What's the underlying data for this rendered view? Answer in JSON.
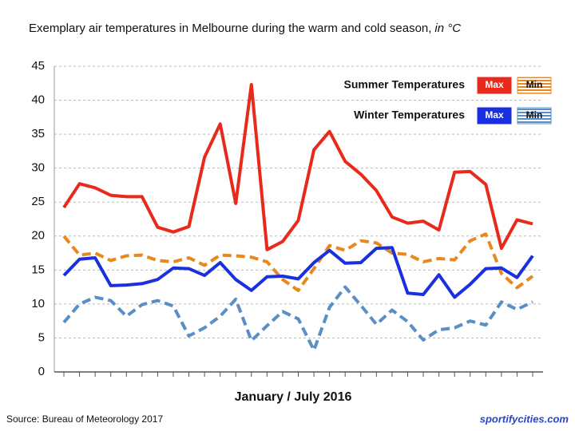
{
  "chart_data": {
    "type": "line",
    "title": "Exemplary air temperatures in Melbourne during the warm and cold season,",
    "title_unit": "in °C",
    "x_label": "January / July 2016",
    "source": "Source:  Bureau of Meteorology 2017",
    "watermark": "sportifycities.com",
    "categories": [
      null,
      null,
      null,
      null,
      null,
      null,
      null,
      null,
      null,
      null,
      null,
      null,
      null,
      null,
      null,
      null,
      null,
      null,
      null,
      null,
      null,
      null,
      null,
      null,
      null,
      null,
      null,
      null,
      null,
      null,
      null
    ],
    "ylim": [
      0,
      45
    ],
    "yticks": [
      0,
      5,
      10,
      15,
      20,
      25,
      30,
      35,
      40,
      45
    ],
    "grid": true,
    "legend": "top-right",
    "series": [
      {
        "group": "Summer Temperatures",
        "name": "Max",
        "color": "#e8291c",
        "dashed": false,
        "values": [
          24.2,
          27.7,
          27.1,
          26.0,
          25.8,
          25.8,
          21.3,
          20.6,
          21.4,
          31.6,
          36.5,
          24.8,
          42.3,
          18.0,
          19.2,
          22.3,
          32.7,
          35.4,
          31.0,
          29.1,
          26.7,
          22.8,
          21.9,
          22.2,
          20.9,
          29.4,
          29.5,
          27.6,
          18.2,
          22.4,
          21.8
        ]
      },
      {
        "group": "Summer Temperatures",
        "name": "Min",
        "color": "#e8891e",
        "dashed": true,
        "values": [
          20.0,
          17.2,
          17.5,
          16.4,
          17.1,
          17.2,
          16.4,
          16.2,
          16.8,
          15.7,
          17.2,
          17.1,
          16.9,
          16.2,
          13.6,
          12.0,
          15.2,
          18.6,
          17.9,
          19.3,
          19.0,
          17.5,
          17.3,
          16.2,
          16.7,
          16.5,
          19.3,
          20.3,
          14.5,
          12.4,
          14.1
        ]
      },
      {
        "group": "Winter Temperatures",
        "name": "Max",
        "color": "#1a2fe0",
        "dashed": false,
        "values": [
          14.2,
          16.6,
          16.8,
          12.7,
          12.8,
          13.0,
          13.6,
          15.3,
          15.2,
          14.2,
          16.1,
          13.6,
          12.0,
          14.0,
          14.1,
          13.7,
          16.1,
          17.9,
          16.0,
          16.1,
          18.2,
          18.3,
          11.6,
          11.4,
          14.3,
          11.0,
          12.9,
          15.2,
          15.3,
          13.9,
          17.1
        ]
      },
      {
        "group": "Winter Temperatures",
        "name": "Min",
        "color": "#5a8fc6",
        "dashed": true,
        "values": [
          7.3,
          10.0,
          11.0,
          10.5,
          8.2,
          9.9,
          10.5,
          9.7,
          5.3,
          6.5,
          8.2,
          10.7,
          4.6,
          6.8,
          8.9,
          7.8,
          3.2,
          9.5,
          12.5,
          9.8,
          7.0,
          9.1,
          7.4,
          4.7,
          6.2,
          6.5,
          7.5,
          6.9,
          10.3,
          9.2,
          10.3
        ]
      }
    ]
  }
}
